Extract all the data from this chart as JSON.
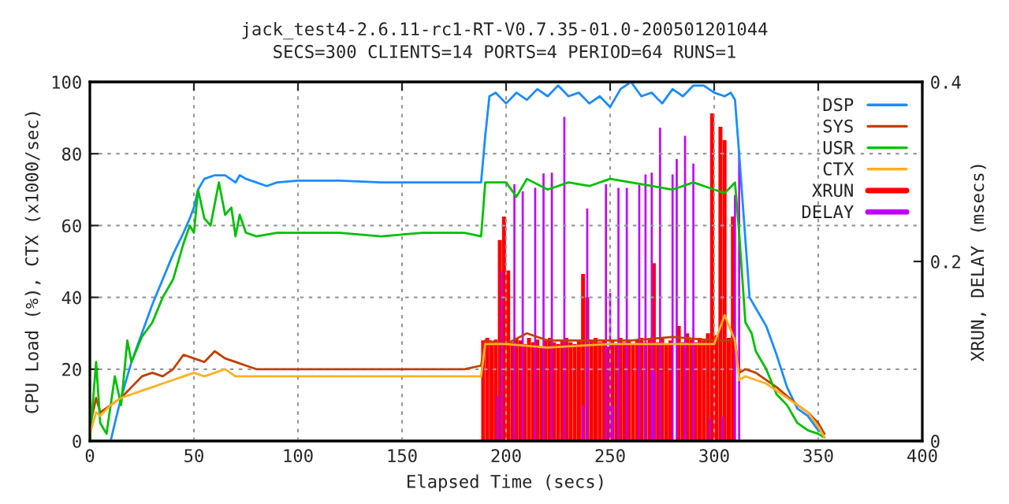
{
  "chart_data": {
    "type": "line",
    "title": "jack_test4-2.6.11-rc1-RT-V0.7.35-01.0-200501201044",
    "subtitle": "SECS=300 CLIENTS=14 PORTS=4 PERIOD=64 RUNS=1",
    "xlabel": "Elapsed Time (secs)",
    "ylabel": "CPU Load (%), CTX (x1000/sec)",
    "y2label": "XRUN, DELAY (msecs)",
    "xlim": [
      0,
      400
    ],
    "xticks": [
      0,
      50,
      100,
      150,
      200,
      250,
      300,
      350,
      400
    ],
    "ylim": [
      0,
      100
    ],
    "yticks": [
      0,
      20,
      40,
      60,
      80,
      100
    ],
    "y2lim": [
      0,
      0.4
    ],
    "y2ticks": [
      0,
      0.2,
      0.4
    ],
    "grid": true,
    "legend": "top right",
    "series": [
      {
        "name": "DSP",
        "color": "#1a8cff",
        "x": [
          0,
          10,
          12,
          15,
          20,
          25,
          30,
          35,
          40,
          45,
          48,
          50,
          52,
          55,
          60,
          65,
          70,
          72,
          75,
          80,
          85,
          90,
          100,
          120,
          140,
          160,
          180,
          188,
          190,
          192,
          195,
          200,
          205,
          210,
          215,
          220,
          225,
          230,
          235,
          240,
          245,
          250,
          255,
          260,
          265,
          270,
          275,
          280,
          285,
          290,
          295,
          300,
          305,
          308,
          310,
          312,
          317,
          320,
          325,
          330,
          335,
          340,
          345,
          350,
          353
        ],
        "values": [
          0,
          0,
          5,
          12,
          22,
          30,
          38,
          45,
          52,
          58,
          62,
          65,
          70,
          73,
          74,
          74,
          72,
          74,
          73,
          72,
          71,
          72,
          72.5,
          72.5,
          72,
          72,
          72,
          72,
          85,
          96,
          97,
          94,
          97,
          95,
          98,
          96,
          99,
          96,
          97,
          94,
          96,
          93,
          98,
          100,
          96,
          97,
          94,
          98,
          96,
          99,
          99,
          97,
          96,
          97,
          95,
          80,
          40,
          37,
          32,
          24,
          15,
          9,
          7,
          3,
          2
        ]
      },
      {
        "name": "SYS",
        "color": "#c04000",
        "x": [
          0,
          3,
          5,
          10,
          15,
          20,
          25,
          30,
          35,
          40,
          45,
          50,
          55,
          60,
          65,
          70,
          75,
          80,
          100,
          120,
          140,
          160,
          180,
          188,
          190,
          200,
          210,
          220,
          240,
          260,
          280,
          300,
          310,
          312,
          315,
          320,
          330,
          340,
          345,
          350,
          353
        ],
        "values": [
          4,
          12,
          8,
          10,
          12,
          15,
          18,
          19,
          18,
          20,
          24,
          23,
          22,
          25,
          23,
          22,
          21,
          20,
          20,
          20,
          20,
          20,
          20,
          21,
          28,
          27,
          30,
          28,
          28,
          28,
          29,
          28,
          28,
          19,
          20,
          19,
          15,
          10,
          8,
          5,
          2
        ]
      },
      {
        "name": "USR",
        "color": "#00c000",
        "x": [
          0,
          3,
          5,
          8,
          10,
          12,
          15,
          18,
          20,
          25,
          30,
          35,
          40,
          45,
          48,
          50,
          52,
          55,
          58,
          62,
          65,
          68,
          70,
          72,
          75,
          80,
          90,
          100,
          120,
          140,
          160,
          180,
          188,
          190,
          200,
          205,
          210,
          220,
          230,
          240,
          250,
          260,
          270,
          280,
          290,
          300,
          305,
          310,
          312,
          315,
          318,
          320,
          325,
          330,
          335,
          340,
          345,
          350,
          353
        ],
        "values": [
          0,
          22,
          5,
          2,
          10,
          18,
          10,
          28,
          22,
          29,
          33,
          40,
          45,
          55,
          60,
          58,
          70,
          62,
          60,
          72,
          63,
          65,
          57,
          63,
          58,
          57,
          58,
          58,
          58,
          57,
          58,
          58,
          57,
          72,
          72,
          68,
          73,
          70,
          72,
          71,
          73,
          72,
          71,
          70,
          72,
          70,
          69,
          72,
          58,
          33,
          30,
          25,
          20,
          13,
          10,
          5,
          3,
          2,
          1
        ]
      },
      {
        "name": "CTX",
        "color": "#ffb020",
        "x": [
          0,
          3,
          5,
          10,
          15,
          20,
          25,
          30,
          35,
          40,
          45,
          50,
          55,
          60,
          65,
          70,
          80,
          100,
          120,
          140,
          160,
          180,
          188,
          190,
          200,
          220,
          250,
          280,
          300,
          305,
          310,
          312,
          315,
          320,
          325,
          330,
          340,
          345,
          350,
          353
        ],
        "values": [
          2,
          8,
          7,
          10,
          12,
          13,
          14,
          15,
          16,
          17,
          18,
          19,
          18,
          19,
          20,
          18,
          18,
          18,
          18,
          18,
          18,
          18,
          18,
          27,
          27,
          26,
          27,
          27,
          27,
          35,
          28,
          17,
          18,
          17,
          16,
          14,
          10,
          8,
          4,
          1
        ]
      },
      {
        "name": "XRUN",
        "color": "#ff0000",
        "type": "bar",
        "axis": "y2",
        "x": [
          189,
          191,
          193,
          195,
          197,
          199,
          201,
          203,
          205,
          207,
          209,
          211,
          213,
          215,
          217,
          219,
          221,
          223,
          225,
          227,
          229,
          231,
          233,
          235,
          237,
          239,
          241,
          243,
          245,
          247,
          249,
          251,
          253,
          255,
          257,
          259,
          261,
          263,
          265,
          267,
          269,
          271,
          273,
          275,
          277,
          279,
          281,
          283,
          285,
          287,
          289,
          291,
          293,
          295,
          297,
          299,
          301,
          303,
          305,
          307,
          309
        ],
        "values": [
          0.112,
          0.115,
          0.11,
          0.113,
          0.224,
          0.25,
          0.19,
          0.11,
          0.115,
          0.112,
          0.108,
          0.115,
          0.11,
          0.113,
          0.105,
          0.112,
          0.115,
          0.11,
          0.108,
          0.113,
          0.115,
          0.11,
          0.108,
          0.112,
          0.186,
          0.16,
          0.112,
          0.115,
          0.11,
          0.113,
          0.105,
          0.112,
          0.108,
          0.115,
          0.11,
          0.113,
          0.108,
          0.112,
          0.115,
          0.11,
          0.113,
          0.198,
          0.11,
          0.115,
          0.108,
          0.112,
          null,
          0.128,
          0.11,
          0.12,
          0.113,
          0.11,
          0.115,
          0.112,
          0.12,
          0.365,
          0.118,
          0.35,
          0.335,
          0.115,
          0.25
        ]
      },
      {
        "name": "DELAY",
        "color": "#c000ff",
        "type": "bar",
        "axis": "y2",
        "x": [
          196,
          198,
          200,
          204,
          208,
          214,
          218,
          222,
          228,
          237,
          239,
          248,
          250,
          251,
          254,
          258,
          264,
          267,
          270,
          271,
          274,
          280,
          282,
          286,
          290,
          298,
          304,
          310,
          312
        ],
        "values": [
          0.05,
          0.189,
          null,
          0.286,
          0.278,
          0.282,
          0.298,
          0.299,
          0.361,
          0.04,
          0.259,
          0.286,
          0.165,
          0.04,
          0.282,
          0.282,
          0.285,
          0.297,
          0.299,
          0.08,
          0.349,
          0.297,
          0.314,
          0.34,
          0.309,
          0.025,
          0.027,
          0.274,
          0.323
        ]
      }
    ]
  }
}
